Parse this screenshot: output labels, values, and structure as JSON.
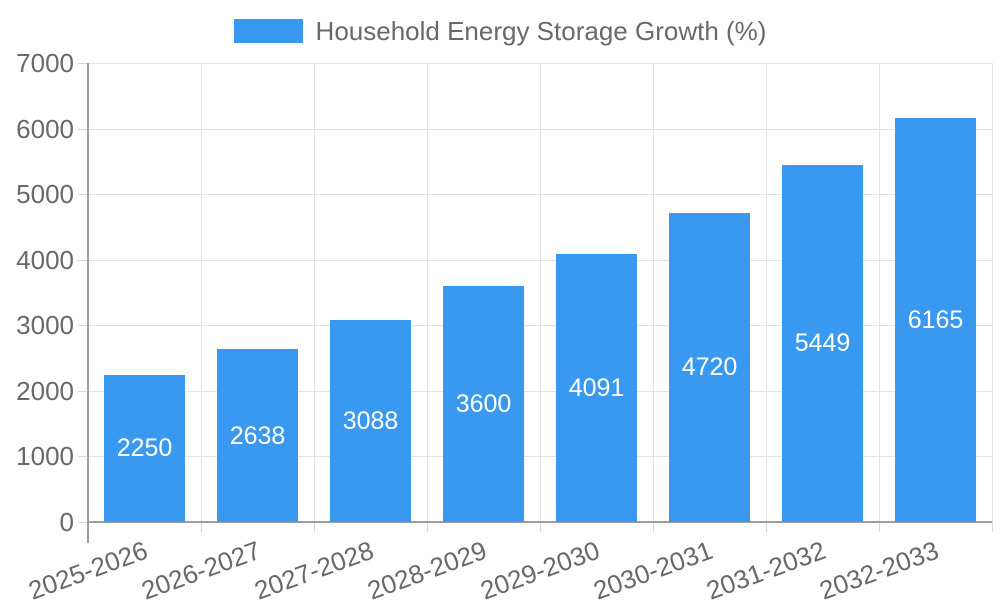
{
  "legend": {
    "label": "Household Energy Storage Growth (%)"
  },
  "chart_data": {
    "type": "bar",
    "title": "Household Energy Storage Growth (%)",
    "categories": [
      "2025-2026",
      "2026-2027",
      "2027-2028",
      "2028-2029",
      "2029-2030",
      "2030-2031",
      "2031-2032",
      "2032-2033"
    ],
    "values": [
      2250,
      2638,
      3088,
      3600,
      4091,
      4720,
      5449,
      6165
    ],
    "xlabel": "",
    "ylabel": "",
    "ylim": [
      0,
      7000
    ],
    "yticks": [
      0,
      1000,
      2000,
      3000,
      4000,
      5000,
      6000,
      7000
    ],
    "grid": true,
    "legend_position": "top",
    "value_label_position": "inside-center",
    "xtick_rotation_deg": -20
  },
  "colors": {
    "bar": "#3999f0",
    "grid": "#e3e3e3",
    "axis": "#9e9e9e",
    "tick": "#d7d7d7",
    "text": "#696969",
    "value_text": "#ffffff",
    "background": "#ffffff"
  }
}
